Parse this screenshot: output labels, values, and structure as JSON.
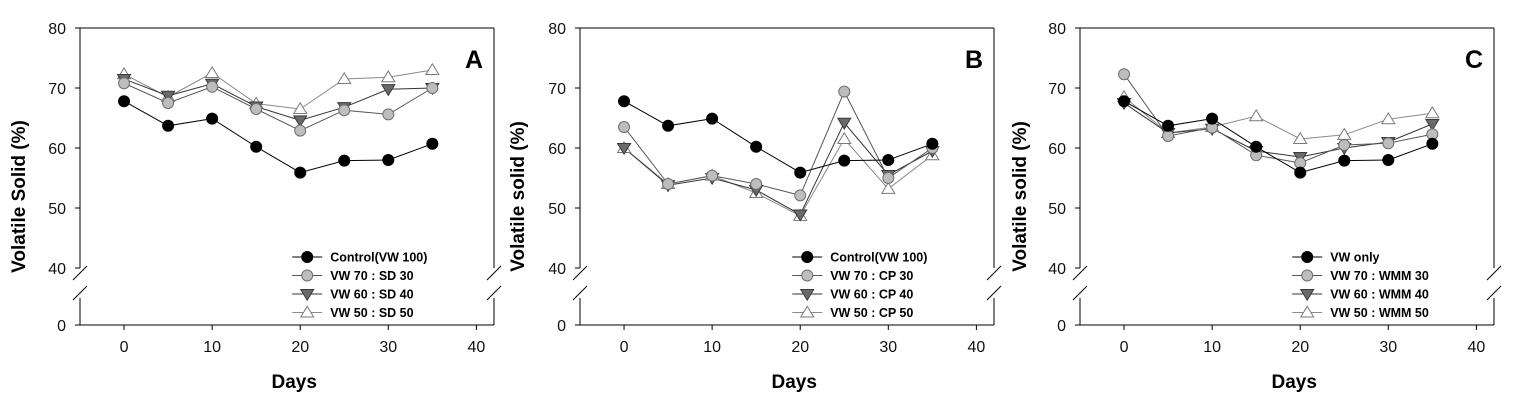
{
  "chart_data": [
    {
      "type": "line",
      "panel_letter": "A",
      "xlabel": "Days",
      "ylabel": "Volatile Solid (%)",
      "xlim": [
        -5,
        42
      ],
      "ylim": [
        0,
        80
      ],
      "axis_break": "between 0 and 40 on y-axis",
      "x_ticks": [
        0,
        10,
        20,
        30,
        40
      ],
      "y_ticks": [
        0,
        40,
        50,
        60,
        70,
        80
      ],
      "legend_position": "bottom-right",
      "x": [
        0,
        5,
        10,
        15,
        20,
        25,
        30,
        35
      ],
      "series": [
        {
          "name": "Control(VW 100)",
          "marker": "circle-black",
          "values": [
            67.8,
            63.7,
            64.9,
            60.2,
            55.9,
            57.9,
            58.0,
            60.7
          ]
        },
        {
          "name": "VW 70 : SD 30",
          "marker": "circle-gray",
          "values": [
            70.8,
            67.5,
            70.2,
            66.5,
            62.9,
            66.3,
            65.6,
            70.0
          ]
        },
        {
          "name": "VW 60 : SD 40",
          "marker": "triangle-down-gray",
          "values": [
            71.5,
            68.7,
            70.7,
            66.9,
            64.6,
            66.8,
            69.8,
            70.0
          ]
        },
        {
          "name": "VW 50 : SD 50",
          "marker": "triangle-up-white",
          "values": [
            72.3,
            68.5,
            72.5,
            67.4,
            66.5,
            71.5,
            71.8,
            73.0
          ]
        }
      ]
    },
    {
      "type": "line",
      "panel_letter": "B",
      "xlabel": "Days",
      "ylabel": "Volatile solid (%)",
      "xlim": [
        -5,
        42
      ],
      "ylim": [
        0,
        80
      ],
      "axis_break": "between 0 and 40 on y-axis",
      "x_ticks": [
        0,
        10,
        20,
        30,
        40
      ],
      "y_ticks": [
        0,
        40,
        50,
        60,
        70,
        80
      ],
      "legend_position": "bottom-right",
      "x": [
        0,
        5,
        10,
        15,
        20,
        25,
        30,
        35
      ],
      "series": [
        {
          "name": "Control(VW 100)",
          "marker": "circle-black",
          "values": [
            67.8,
            63.7,
            64.9,
            60.2,
            55.9,
            57.9,
            58.0,
            60.7
          ]
        },
        {
          "name": "VW 70 : CP 30",
          "marker": "circle-gray",
          "values": [
            63.5,
            54.0,
            55.4,
            54.0,
            52.1,
            69.4,
            55.0,
            60.0
          ]
        },
        {
          "name": "VW 60 : CP 40",
          "marker": "triangle-down-gray",
          "values": [
            60.0,
            53.8,
            55.0,
            53.0,
            48.9,
            64.2,
            55.5,
            59.5
          ]
        },
        {
          "name": "VW 50 : CP 50",
          "marker": "triangle-up-white",
          "values": [
            60.0,
            54.0,
            55.4,
            52.5,
            48.7,
            61.5,
            53.2,
            58.8
          ]
        }
      ]
    },
    {
      "type": "line",
      "panel_letter": "C",
      "xlabel": "Days",
      "ylabel": "Volatile solid (%)",
      "xlim": [
        -5,
        42
      ],
      "ylim": [
        0,
        80
      ],
      "axis_break": "between 0 and 40 on y-axis",
      "x_ticks": [
        0,
        10,
        20,
        30,
        40
      ],
      "y_ticks": [
        0,
        40,
        50,
        60,
        70,
        80
      ],
      "legend_position": "bottom-right",
      "x": [
        0,
        5,
        10,
        15,
        20,
        25,
        30,
        35
      ],
      "series": [
        {
          "name": "VW only",
          "marker": "circle-black",
          "values": [
            67.8,
            63.7,
            64.9,
            60.2,
            55.9,
            57.9,
            58.0,
            60.7
          ]
        },
        {
          "name": "VW 70 : WMM 30",
          "marker": "circle-gray",
          "values": [
            72.3,
            62.0,
            63.4,
            58.8,
            57.5,
            60.5,
            60.8,
            62.3
          ]
        },
        {
          "name": "VW 60 : WMM 40",
          "marker": "triangle-down-gray",
          "values": [
            67.5,
            62.5,
            63.2,
            59.5,
            58.5,
            60.0,
            61.0,
            64.0
          ]
        },
        {
          "name": "VW 50 : WMM 50",
          "marker": "triangle-up-white",
          "values": [
            68.5,
            62.5,
            63.5,
            65.3,
            61.5,
            62.2,
            64.8,
            65.8
          ]
        }
      ]
    }
  ]
}
